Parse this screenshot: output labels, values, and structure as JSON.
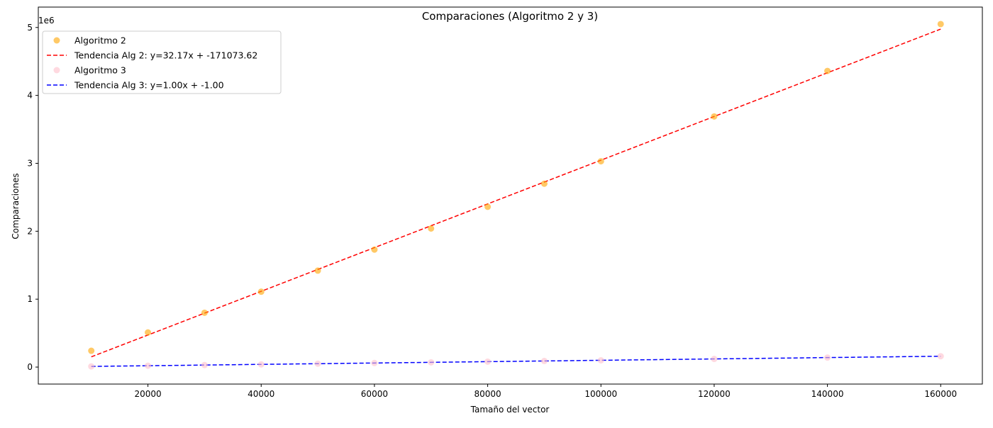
{
  "chart_data": {
    "type": "scatter",
    "title": "Comparaciones (Algoritmo 2 y 3)",
    "xlabel": "Tamaño del vector",
    "ylabel": "Comparaciones",
    "y_offset_label": "1e6",
    "xlim": [
      640,
      167360
    ],
    "ylim": [
      -250000,
      5300000
    ],
    "x_ticks": [
      20000,
      40000,
      60000,
      80000,
      100000,
      120000,
      140000,
      160000
    ],
    "x_tick_labels": [
      "20000",
      "40000",
      "60000",
      "80000",
      "100000",
      "120000",
      "140000",
      "160000"
    ],
    "y_ticks": [
      0,
      1000000,
      2000000,
      3000000,
      4000000,
      5000000
    ],
    "y_tick_labels": [
      "0",
      "1",
      "2",
      "3",
      "4",
      "5"
    ],
    "grid": false,
    "legend_position": "top-left",
    "x": [
      10000,
      20000,
      30000,
      40000,
      50000,
      60000,
      70000,
      80000,
      90000,
      100000,
      120000,
      140000,
      160000
    ],
    "series": [
      {
        "name": "Algoritmo 2",
        "kind": "scatter",
        "color": "#ffa500",
        "values": [
          240000,
          510000,
          800000,
          1110000,
          1420000,
          1730000,
          2040000,
          2360000,
          2700000,
          3030000,
          3690000,
          4360000,
          5050000
        ]
      },
      {
        "name": "Tendencia Alg 2: y=32.17x + -171073.62",
        "kind": "line",
        "color": "#ff0000",
        "slope": 32.17,
        "intercept": -171073.62
      },
      {
        "name": "Algoritmo 3",
        "kind": "scatter",
        "color": "#ffc0cb",
        "values": [
          10000,
          20000,
          30000,
          40000,
          50000,
          60000,
          70000,
          80000,
          90000,
          100000,
          120000,
          140000,
          160000
        ]
      },
      {
        "name": "Tendencia Alg 3: y=1.00x + -1.00",
        "kind": "line",
        "color": "#0000ff",
        "slope": 1.0,
        "intercept": -1.0
      }
    ]
  }
}
